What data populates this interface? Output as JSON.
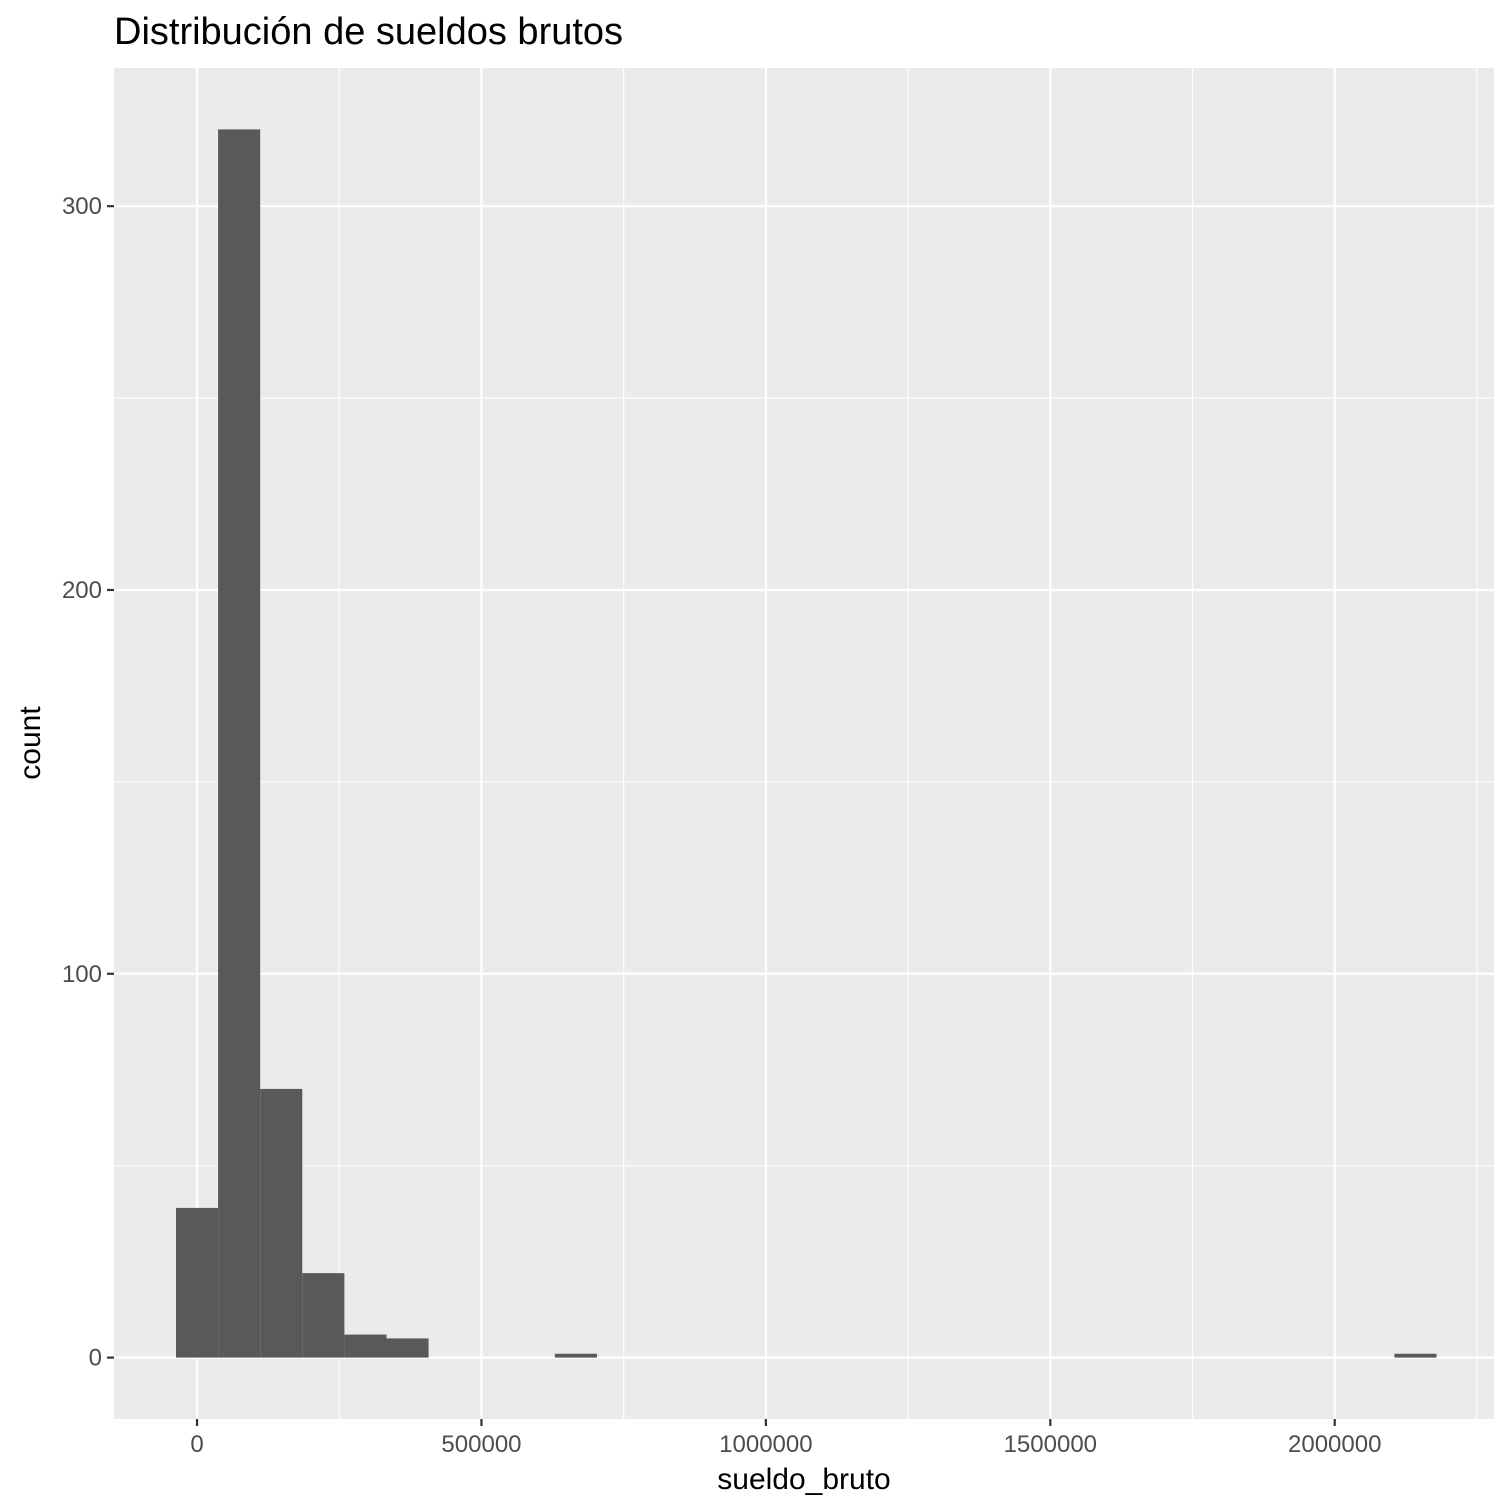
{
  "chart_data": {
    "type": "bar",
    "subtype": "histogram",
    "title": "Distribución de sueldos brutos",
    "xlabel": "sueldo_bruto",
    "ylabel": "count",
    "xlim": [
      -146000,
      2280000
    ],
    "ylim": [
      -16,
      336
    ],
    "x_ticks": [
      0,
      500000,
      1000000,
      1500000,
      2000000
    ],
    "x_tick_labels": [
      "0",
      "500000",
      "1000000",
      "1500000",
      "2000000"
    ],
    "y_ticks": [
      0,
      100,
      200,
      300
    ],
    "y_tick_labels": [
      "0",
      "100",
      "200",
      "300"
    ],
    "bin_width": 74000,
    "bins": [
      {
        "x0": -37000,
        "x1": 37000,
        "count": 39
      },
      {
        "x0": 37000,
        "x1": 111000,
        "count": 320
      },
      {
        "x0": 111000,
        "x1": 185000,
        "count": 70
      },
      {
        "x0": 185000,
        "x1": 259000,
        "count": 22
      },
      {
        "x0": 259000,
        "x1": 333000,
        "count": 6
      },
      {
        "x0": 333000,
        "x1": 407000,
        "count": 5
      },
      {
        "x0": 629000,
        "x1": 703000,
        "count": 1
      },
      {
        "x0": 2105000,
        "x1": 2179000,
        "count": 1
      }
    ],
    "bar_color": "#595959",
    "panel_color": "#ebebeb",
    "grid_color": "#ffffff",
    "grid": true,
    "legend": "none"
  }
}
